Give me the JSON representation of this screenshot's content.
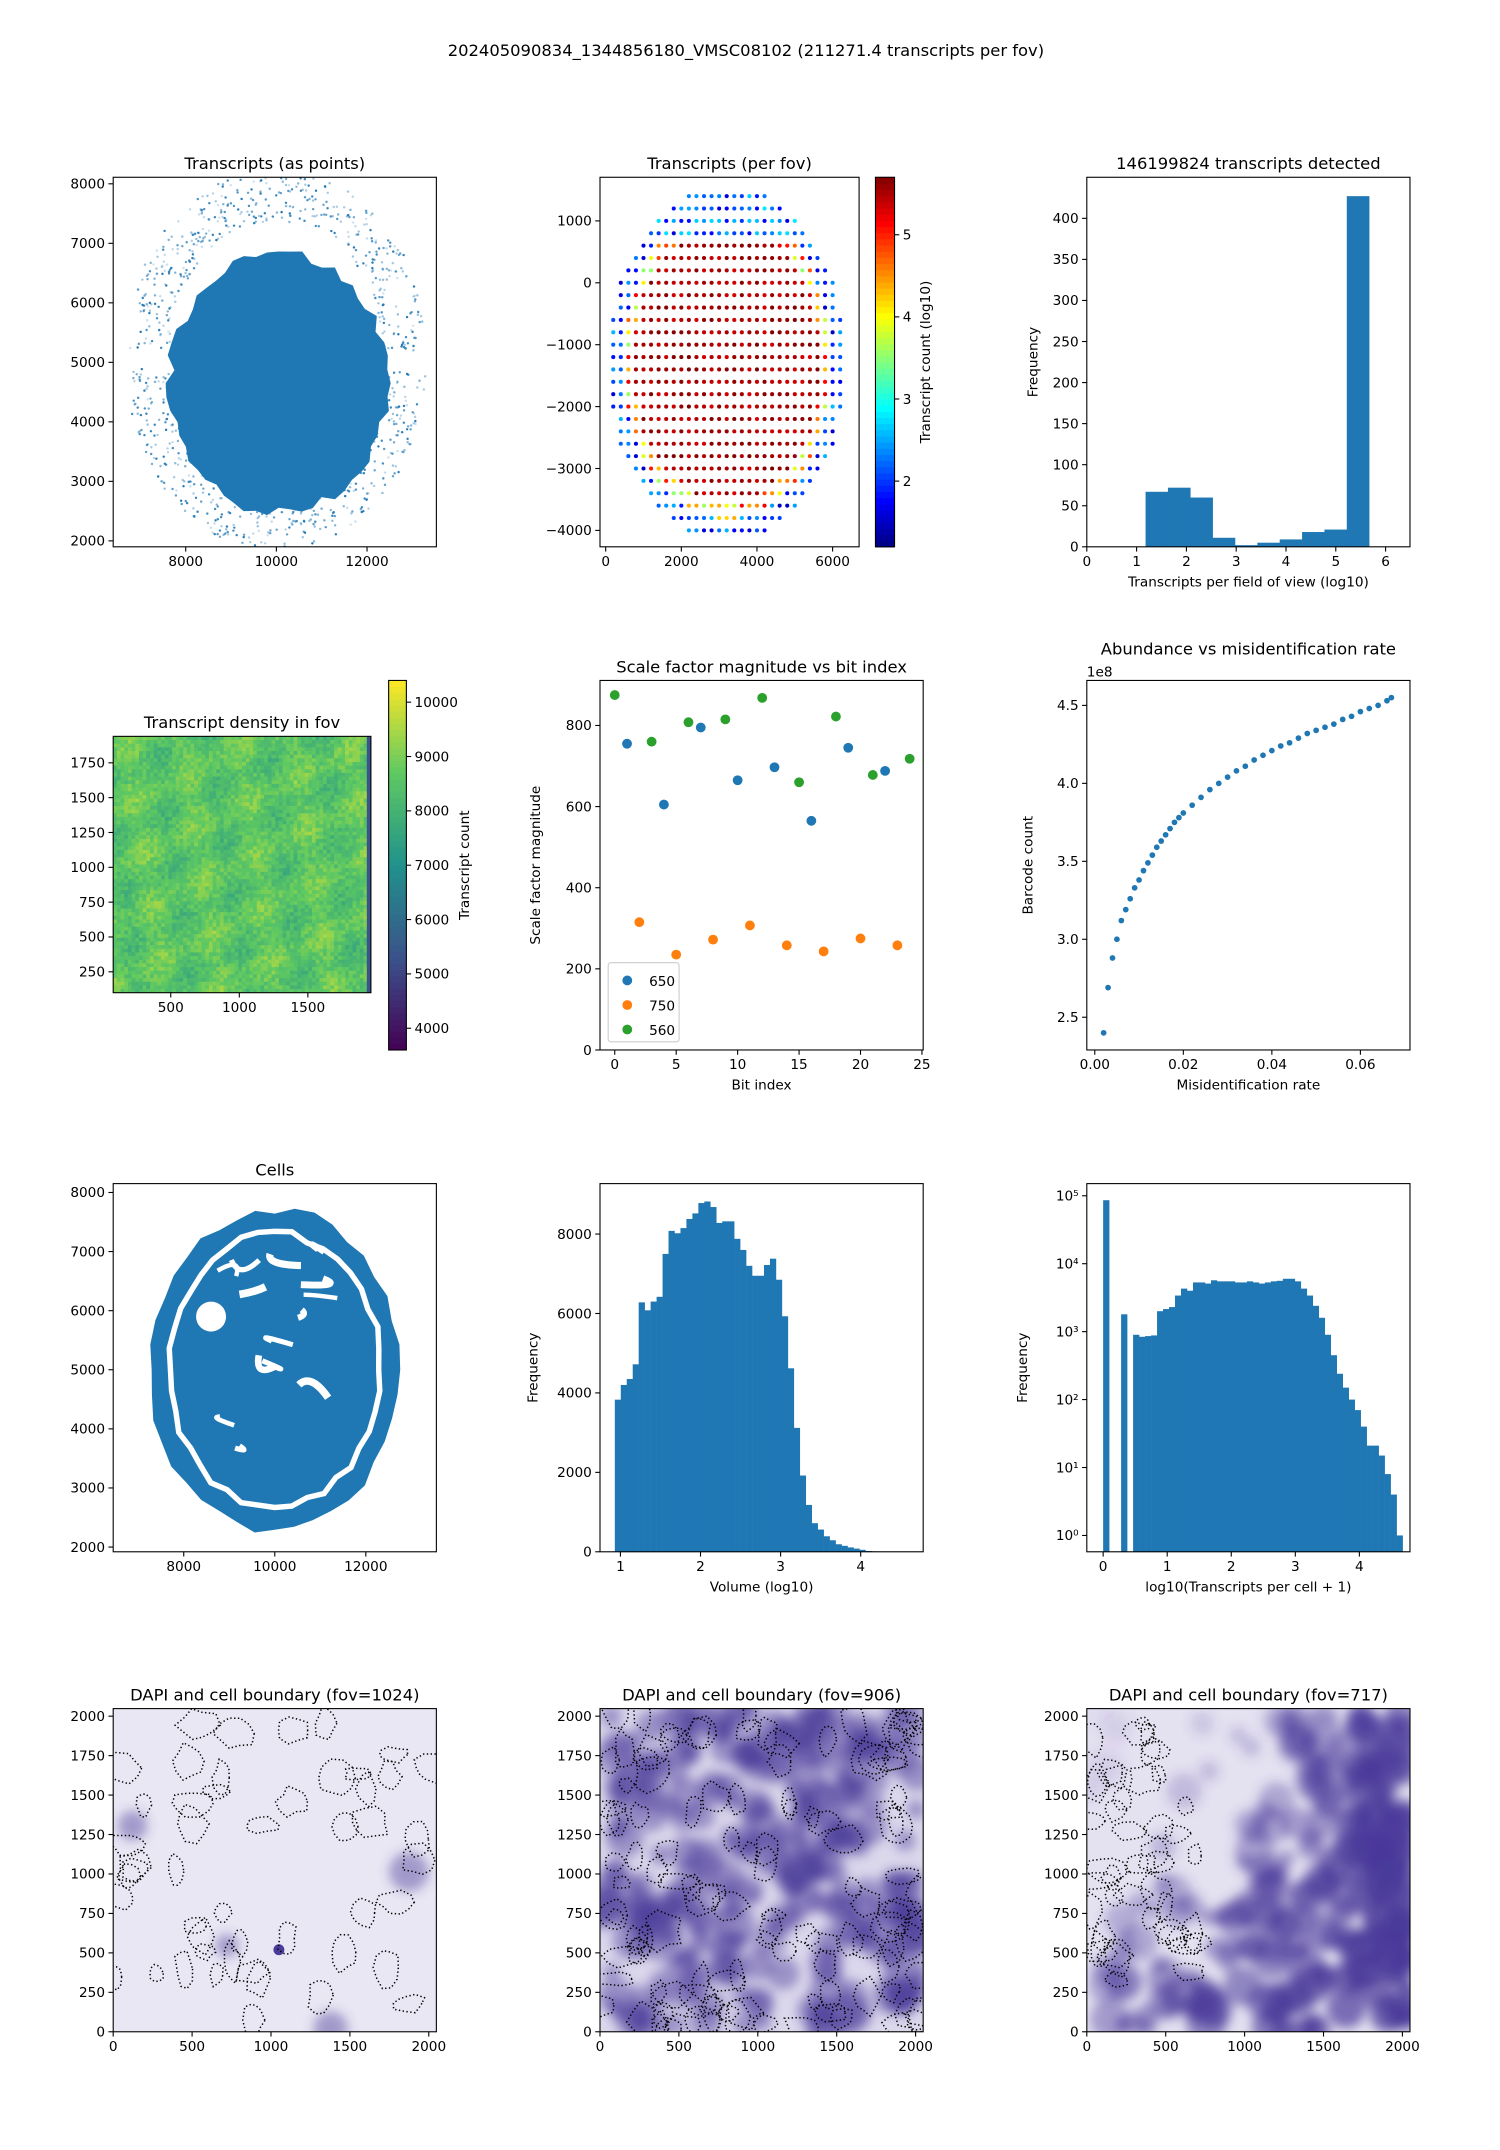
{
  "figure": {
    "suptitle": "202405090834_1344856180_VMSC08102 (211271.4 transcripts per fov)"
  },
  "colors": {
    "blue": "#1f77b4",
    "orange": "#ff7f0e",
    "green": "#2ca02c"
  },
  "chart_data": [
    {
      "id": "points",
      "type": "blob",
      "title": "Transcripts (as points)",
      "xlabel": "",
      "ylabel": "",
      "xlim": [
        6400,
        13530
      ],
      "ylim": [
        1900,
        8110
      ],
      "xticks": [
        [
          8000,
          "8000"
        ],
        [
          10000,
          "10000"
        ],
        [
          12000,
          "12000"
        ]
      ],
      "yticks": [
        [
          2000,
          "2000"
        ],
        [
          3000,
          "3000"
        ],
        [
          4000,
          "4000"
        ],
        [
          5000,
          "5000"
        ],
        [
          6000,
          "6000"
        ],
        [
          7000,
          "7000"
        ],
        [
          8000,
          "8000"
        ]
      ]
    },
    {
      "id": "perfov",
      "type": "fov_grid",
      "title": "Transcripts (per fov)",
      "xlabel": "",
      "ylabel": "",
      "xlim": [
        -150,
        6700
      ],
      "ylim": [
        -4265,
        1705
      ],
      "xticks": [
        [
          0,
          "0"
        ],
        [
          2000,
          "2000"
        ],
        [
          4000,
          "4000"
        ],
        [
          6000,
          "6000"
        ]
      ],
      "yticks": [
        [
          1000,
          "1000"
        ],
        [
          0,
          "0"
        ],
        [
          -1000,
          "−1000"
        ],
        [
          -2000,
          "−2000"
        ],
        [
          -3000,
          "−3000"
        ],
        [
          -4000,
          "−4000"
        ]
      ],
      "grid_spacing": 200,
      "colorbar": {
        "label": "Transcript count (log10)",
        "range": [
          1.2,
          5.7
        ],
        "ticks": [
          [
            2,
            "2"
          ],
          [
            3,
            "3"
          ],
          [
            4,
            "4"
          ],
          [
            5,
            "5"
          ]
        ],
        "cmap": "jet"
      }
    },
    {
      "id": "hist1",
      "type": "hist",
      "title": "146199824 transcripts detected",
      "xlabel": "Transcripts per field of view (log10)",
      "ylabel": "Frequency",
      "xlim": [
        0,
        6.49
      ],
      "ylim": [
        0,
        450
      ],
      "xticks": [
        [
          0,
          "0"
        ],
        [
          1,
          "1"
        ],
        [
          2,
          "2"
        ],
        [
          3,
          "3"
        ],
        [
          4,
          "4"
        ],
        [
          5,
          "5"
        ],
        [
          6,
          "6"
        ]
      ],
      "yticks": [
        [
          0,
          "0"
        ],
        [
          50,
          "50"
        ],
        [
          100,
          "100"
        ],
        [
          150,
          "150"
        ],
        [
          200,
          "200"
        ],
        [
          250,
          "250"
        ],
        [
          300,
          "300"
        ],
        [
          350,
          "350"
        ],
        [
          400,
          "400"
        ]
      ],
      "bin_start": 1.18,
      "bin_width": 0.449,
      "counts": [
        67,
        72,
        60,
        11,
        2,
        5,
        9,
        18,
        21,
        427
      ]
    },
    {
      "id": "density",
      "type": "heatmap",
      "title": "Transcript density in fov",
      "xlabel": "",
      "ylabel": "",
      "xlim": [
        80,
        1960
      ],
      "ylim": [
        100,
        1940
      ],
      "xticks": [
        [
          500,
          "500"
        ],
        [
          1000,
          "1000"
        ],
        [
          1500,
          "1500"
        ]
      ],
      "yticks": [
        [
          250,
          "250"
        ],
        [
          500,
          "500"
        ],
        [
          750,
          "750"
        ],
        [
          1000,
          "1000"
        ],
        [
          1250,
          "1250"
        ],
        [
          1500,
          "1500"
        ],
        [
          1750,
          "1750"
        ]
      ],
      "value_range": [
        7200,
        10000
      ],
      "colorbar": {
        "label": "Transcript count",
        "range": [
          3600,
          10400
        ],
        "ticks": [
          [
            4000,
            "4000"
          ],
          [
            5000,
            "5000"
          ],
          [
            6000,
            "6000"
          ],
          [
            7000,
            "7000"
          ],
          [
            8000,
            "8000"
          ],
          [
            9000,
            "9000"
          ],
          [
            10000,
            "10000"
          ]
        ],
        "cmap": "viridis"
      }
    },
    {
      "id": "scale",
      "type": "scatter_groups",
      "title": "Scale factor magnitude vs bit index",
      "xlabel": "Bit index",
      "ylabel": "Scale factor magnitude",
      "xlim": [
        -1.2,
        25.1
      ],
      "ylim": [
        0,
        911
      ],
      "xticks": [
        [
          0,
          "0"
        ],
        [
          5,
          "5"
        ],
        [
          10,
          "10"
        ],
        [
          15,
          "15"
        ],
        [
          20,
          "20"
        ],
        [
          25,
          "25"
        ]
      ],
      "yticks": [
        [
          0,
          "0"
        ],
        [
          200,
          "200"
        ],
        [
          400,
          "400"
        ],
        [
          600,
          "600"
        ],
        [
          800,
          "800"
        ]
      ],
      "legend": "lower-left",
      "series": [
        {
          "name": "650",
          "color": "#1f77b4",
          "points": [
            [
              1,
              755
            ],
            [
              4,
              605
            ],
            [
              7,
              795
            ],
            [
              10,
              665
            ],
            [
              13,
              697
            ],
            [
              16,
              565
            ],
            [
              19,
              745
            ],
            [
              22,
              688
            ]
          ]
        },
        {
          "name": "750",
          "color": "#ff7f0e",
          "points": [
            [
              2,
              315
            ],
            [
              5,
              235
            ],
            [
              8,
              272
            ],
            [
              11,
              307
            ],
            [
              14,
              258
            ],
            [
              17,
              243
            ],
            [
              20,
              275
            ],
            [
              23,
              258
            ]
          ]
        },
        {
          "name": "560",
          "color": "#2ca02c",
          "points": [
            [
              0,
              875
            ],
            [
              3,
              760
            ],
            [
              6,
              808
            ],
            [
              9,
              815
            ],
            [
              12,
              868
            ],
            [
              15,
              660
            ],
            [
              18,
              822
            ],
            [
              21,
              678
            ],
            [
              24,
              718
            ]
          ]
        }
      ]
    },
    {
      "id": "abund",
      "type": "scatter",
      "title": "Abundance vs misidentification rate",
      "xlabel": "Misidentification rate",
      "ylabel": "Barcode count",
      "offset_text": "1e8",
      "xlim": [
        -0.0018,
        0.0712
      ],
      "ylim": [
        2.29,
        4.66
      ],
      "xticks": [
        [
          0,
          "0.00"
        ],
        [
          0.02,
          "0.02"
        ],
        [
          0.04,
          "0.04"
        ],
        [
          0.06,
          "0.06"
        ]
      ],
      "yticks": [
        [
          2.5,
          "2.5"
        ],
        [
          3.0,
          "3.0"
        ],
        [
          3.5,
          "3.5"
        ],
        [
          4.0,
          "4.0"
        ],
        [
          4.5,
          "4.5"
        ]
      ],
      "points": [
        [
          0.002,
          2.4
        ],
        [
          0.003,
          2.69
        ],
        [
          0.004,
          2.88
        ],
        [
          0.005,
          3.0
        ],
        [
          0.006,
          3.12
        ],
        [
          0.007,
          3.19
        ],
        [
          0.008,
          3.26
        ],
        [
          0.009,
          3.33
        ],
        [
          0.01,
          3.38
        ],
        [
          0.011,
          3.44
        ],
        [
          0.012,
          3.49
        ],
        [
          0.013,
          3.54
        ],
        [
          0.014,
          3.59
        ],
        [
          0.015,
          3.63
        ],
        [
          0.016,
          3.67
        ],
        [
          0.017,
          3.71
        ],
        [
          0.018,
          3.75
        ],
        [
          0.019,
          3.78
        ],
        [
          0.02,
          3.81
        ],
        [
          0.022,
          3.86
        ],
        [
          0.024,
          3.91
        ],
        [
          0.026,
          3.96
        ],
        [
          0.028,
          4.0
        ],
        [
          0.03,
          4.04
        ],
        [
          0.032,
          4.08
        ],
        [
          0.034,
          4.11
        ],
        [
          0.036,
          4.15
        ],
        [
          0.038,
          4.18
        ],
        [
          0.04,
          4.21
        ],
        [
          0.042,
          4.24
        ],
        [
          0.044,
          4.26
        ],
        [
          0.046,
          4.29
        ],
        [
          0.048,
          4.32
        ],
        [
          0.05,
          4.34
        ],
        [
          0.052,
          4.36
        ],
        [
          0.054,
          4.38
        ],
        [
          0.056,
          4.41
        ],
        [
          0.058,
          4.43
        ],
        [
          0.06,
          4.46
        ],
        [
          0.062,
          4.48
        ],
        [
          0.064,
          4.5
        ],
        [
          0.066,
          4.53
        ],
        [
          0.067,
          4.55
        ]
      ]
    },
    {
      "id": "cells",
      "type": "cells",
      "title": "Cells",
      "xlabel": "",
      "ylabel": "",
      "xlim": [
        6450,
        13550
      ],
      "ylim": [
        1920,
        8150
      ],
      "xticks": [
        [
          8000,
          "8000"
        ],
        [
          10000,
          "10000"
        ],
        [
          12000,
          "12000"
        ]
      ],
      "yticks": [
        [
          2000,
          "2000"
        ],
        [
          3000,
          "3000"
        ],
        [
          4000,
          "4000"
        ],
        [
          5000,
          "5000"
        ],
        [
          6000,
          "6000"
        ],
        [
          7000,
          "7000"
        ],
        [
          8000,
          "8000"
        ]
      ]
    },
    {
      "id": "volume",
      "type": "hist",
      "title": "",
      "xlabel": "Volume (log10)",
      "ylabel": "Frequency",
      "xlim": [
        0.745,
        4.78
      ],
      "ylim": [
        0,
        9270
      ],
      "xticks": [
        [
          1,
          "1"
        ],
        [
          2,
          "2"
        ],
        [
          3,
          "3"
        ],
        [
          4,
          "4"
        ]
      ],
      "yticks": [
        [
          0,
          "0"
        ],
        [
          2000,
          "2000"
        ],
        [
          4000,
          "4000"
        ],
        [
          6000,
          "6000"
        ],
        [
          8000,
          "8000"
        ]
      ],
      "bin_start": 0.93,
      "bin_width": 0.0745,
      "counts": [
        3830,
        4200,
        4350,
        4720,
        6280,
        6080,
        6300,
        6420,
        7500,
        8080,
        8020,
        8150,
        8380,
        8520,
        8780,
        8820,
        8680,
        8280,
        8320,
        8320,
        7880,
        7600,
        7200,
        6950,
        6950,
        7220,
        7380,
        6850,
        5930,
        4620,
        3120,
        1920,
        1180,
        720,
        560,
        390,
        290,
        190,
        150,
        110,
        80,
        50,
        20,
        10,
        5,
        3,
        2,
        1,
        1,
        1
      ]
    },
    {
      "id": "loghist",
      "type": "hist",
      "log_y": true,
      "title": "",
      "xlabel": "log10(Transcripts per cell + 1)",
      "ylabel": "Frequency",
      "xlim": [
        -0.255,
        4.79
      ],
      "ylim": [
        0.575,
        151000
      ],
      "xticks": [
        [
          0,
          "0"
        ],
        [
          1,
          "1"
        ],
        [
          2,
          "2"
        ],
        [
          3,
          "3"
        ],
        [
          4,
          "4"
        ]
      ],
      "yticks": [
        [
          1,
          "10⁰"
        ],
        [
          10,
          "10¹"
        ],
        [
          100,
          "10²"
        ],
        [
          1000,
          "10³"
        ],
        [
          10000,
          "10⁴"
        ],
        [
          100000,
          "10⁵"
        ]
      ],
      "bin_start": 0,
      "bin_width": 0.0935,
      "counts": [
        86000,
        0,
        0,
        1800,
        0,
        900,
        840,
        860,
        880,
        2000,
        2150,
        2300,
        3400,
        4300,
        4000,
        5300,
        5300,
        5100,
        5700,
        5500,
        5500,
        5500,
        5300,
        5300,
        5500,
        5300,
        5100,
        5300,
        5500,
        5600,
        6000,
        6000,
        5500,
        4300,
        3400,
        2400,
        1600,
        900,
        450,
        240,
        150,
        100,
        70,
        40,
        21,
        21,
        15,
        8,
        4,
        1
      ]
    },
    {
      "id": "dapi1",
      "type": "dapi",
      "style": "sparse",
      "title": "DAPI and cell boundary (fov=1024)",
      "xlabel": "",
      "ylabel": "",
      "xlim": [
        0,
        2048
      ],
      "ylim": [
        0,
        2048
      ],
      "xticks": [
        [
          0,
          "0"
        ],
        [
          500,
          "500"
        ],
        [
          1000,
          "1000"
        ],
        [
          1500,
          "1500"
        ],
        [
          2000,
          "2000"
        ]
      ],
      "yticks": [
        [
          0,
          "0"
        ],
        [
          250,
          "250"
        ],
        [
          500,
          "500"
        ],
        [
          750,
          "750"
        ],
        [
          1000,
          "1000"
        ],
        [
          1250,
          "1250"
        ],
        [
          1500,
          "1500"
        ],
        [
          1750,
          "1750"
        ],
        [
          2000,
          "2000"
        ]
      ]
    },
    {
      "id": "dapi2",
      "type": "dapi",
      "style": "dense",
      "title": "DAPI and cell boundary (fov=906)",
      "xlabel": "",
      "ylabel": "",
      "xlim": [
        0,
        2048
      ],
      "ylim": [
        0,
        2048
      ],
      "xticks": [
        [
          0,
          "0"
        ],
        [
          500,
          "500"
        ],
        [
          1000,
          "1000"
        ],
        [
          1500,
          "1500"
        ],
        [
          2000,
          "2000"
        ]
      ],
      "yticks": [
        [
          0,
          "0"
        ],
        [
          250,
          "250"
        ],
        [
          500,
          "500"
        ],
        [
          750,
          "750"
        ],
        [
          1000,
          "1000"
        ],
        [
          1250,
          "1250"
        ],
        [
          1500,
          "1500"
        ],
        [
          1750,
          "1750"
        ],
        [
          2000,
          "2000"
        ]
      ]
    },
    {
      "id": "dapi3",
      "type": "dapi",
      "style": "diagonal",
      "title": "DAPI and cell boundary (fov=717)",
      "xlabel": "",
      "ylabel": "",
      "xlim": [
        0,
        2048
      ],
      "ylim": [
        0,
        2048
      ],
      "xticks": [
        [
          0,
          "0"
        ],
        [
          500,
          "500"
        ],
        [
          1000,
          "1000"
        ],
        [
          1500,
          "1500"
        ],
        [
          2000,
          "2000"
        ]
      ],
      "yticks": [
        [
          0,
          "0"
        ],
        [
          250,
          "250"
        ],
        [
          500,
          "500"
        ],
        [
          750,
          "750"
        ],
        [
          1000,
          "1000"
        ],
        [
          1250,
          "1250"
        ],
        [
          1500,
          "1500"
        ],
        [
          1750,
          "1750"
        ],
        [
          2000,
          "2000"
        ]
      ]
    }
  ]
}
